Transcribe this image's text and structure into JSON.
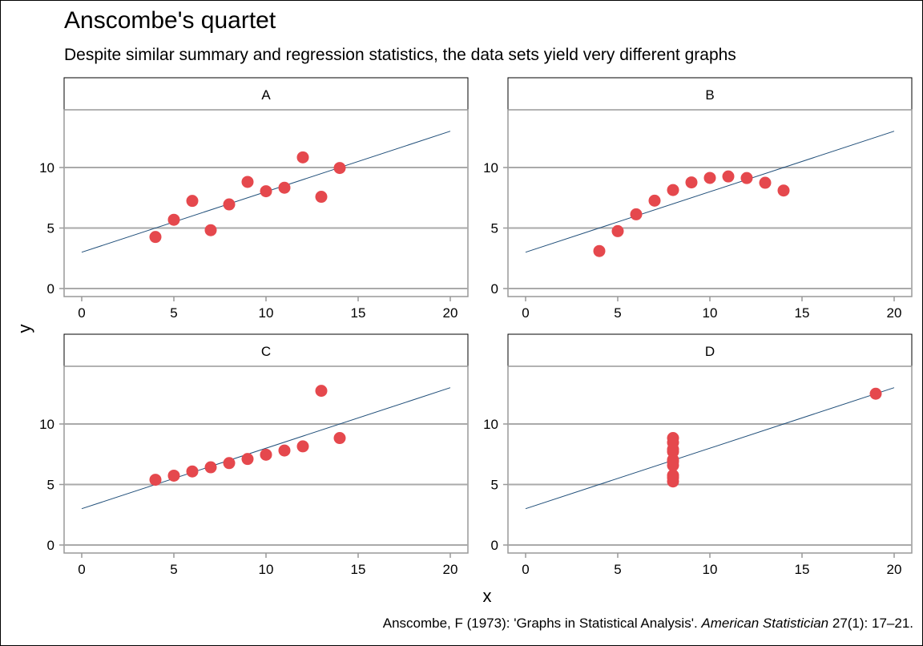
{
  "title": "Anscombe's quartet",
  "subtitle": "Despite similar summary and regression statistics, the data sets yield very different graphs",
  "caption": {
    "before": "Anscombe, F (1973): 'Graphs in Statistical Analysis'. ",
    "journal": "American Statistician",
    "after": " 27(1): 17–21."
  },
  "colors": {
    "points": "#e5484d",
    "line": "#1f4e79",
    "grid": "#aaaaaa",
    "axis": "#999999"
  },
  "chart_data": {
    "type": "scatter",
    "layout": "2x2 facets",
    "xlabel": "x",
    "ylabel": "y",
    "xlim": [
      0,
      20
    ],
    "ylim": [
      0,
      15
    ],
    "xticks": [
      0,
      5,
      10,
      15,
      20
    ],
    "yticks": [
      0,
      5,
      10
    ],
    "grid": "horizontal",
    "fit_line": {
      "intercept": 3,
      "slope": 0.5,
      "x_range": [
        0,
        20
      ]
    },
    "panels": [
      {
        "label": "A",
        "x": [
          10,
          8,
          13,
          9,
          11,
          14,
          6,
          4,
          12,
          7,
          5
        ],
        "y": [
          8.04,
          6.95,
          7.58,
          8.81,
          8.33,
          9.96,
          7.24,
          4.26,
          10.84,
          4.82,
          5.68
        ]
      },
      {
        "label": "B",
        "x": [
          10,
          8,
          13,
          9,
          11,
          14,
          6,
          4,
          12,
          7,
          5
        ],
        "y": [
          9.14,
          8.14,
          8.74,
          8.77,
          9.26,
          8.1,
          6.13,
          3.1,
          9.13,
          7.26,
          4.74
        ]
      },
      {
        "label": "C",
        "x": [
          10,
          8,
          13,
          9,
          11,
          14,
          6,
          4,
          12,
          7,
          5
        ],
        "y": [
          7.46,
          6.77,
          12.74,
          7.11,
          7.81,
          8.84,
          6.08,
          5.39,
          8.15,
          6.42,
          5.73
        ]
      },
      {
        "label": "D",
        "x": [
          8,
          8,
          8,
          8,
          8,
          8,
          8,
          19,
          8,
          8,
          8
        ],
        "y": [
          6.58,
          5.76,
          7.71,
          8.84,
          8.47,
          7.04,
          5.25,
          12.5,
          5.56,
          7.91,
          6.89
        ]
      }
    ]
  }
}
